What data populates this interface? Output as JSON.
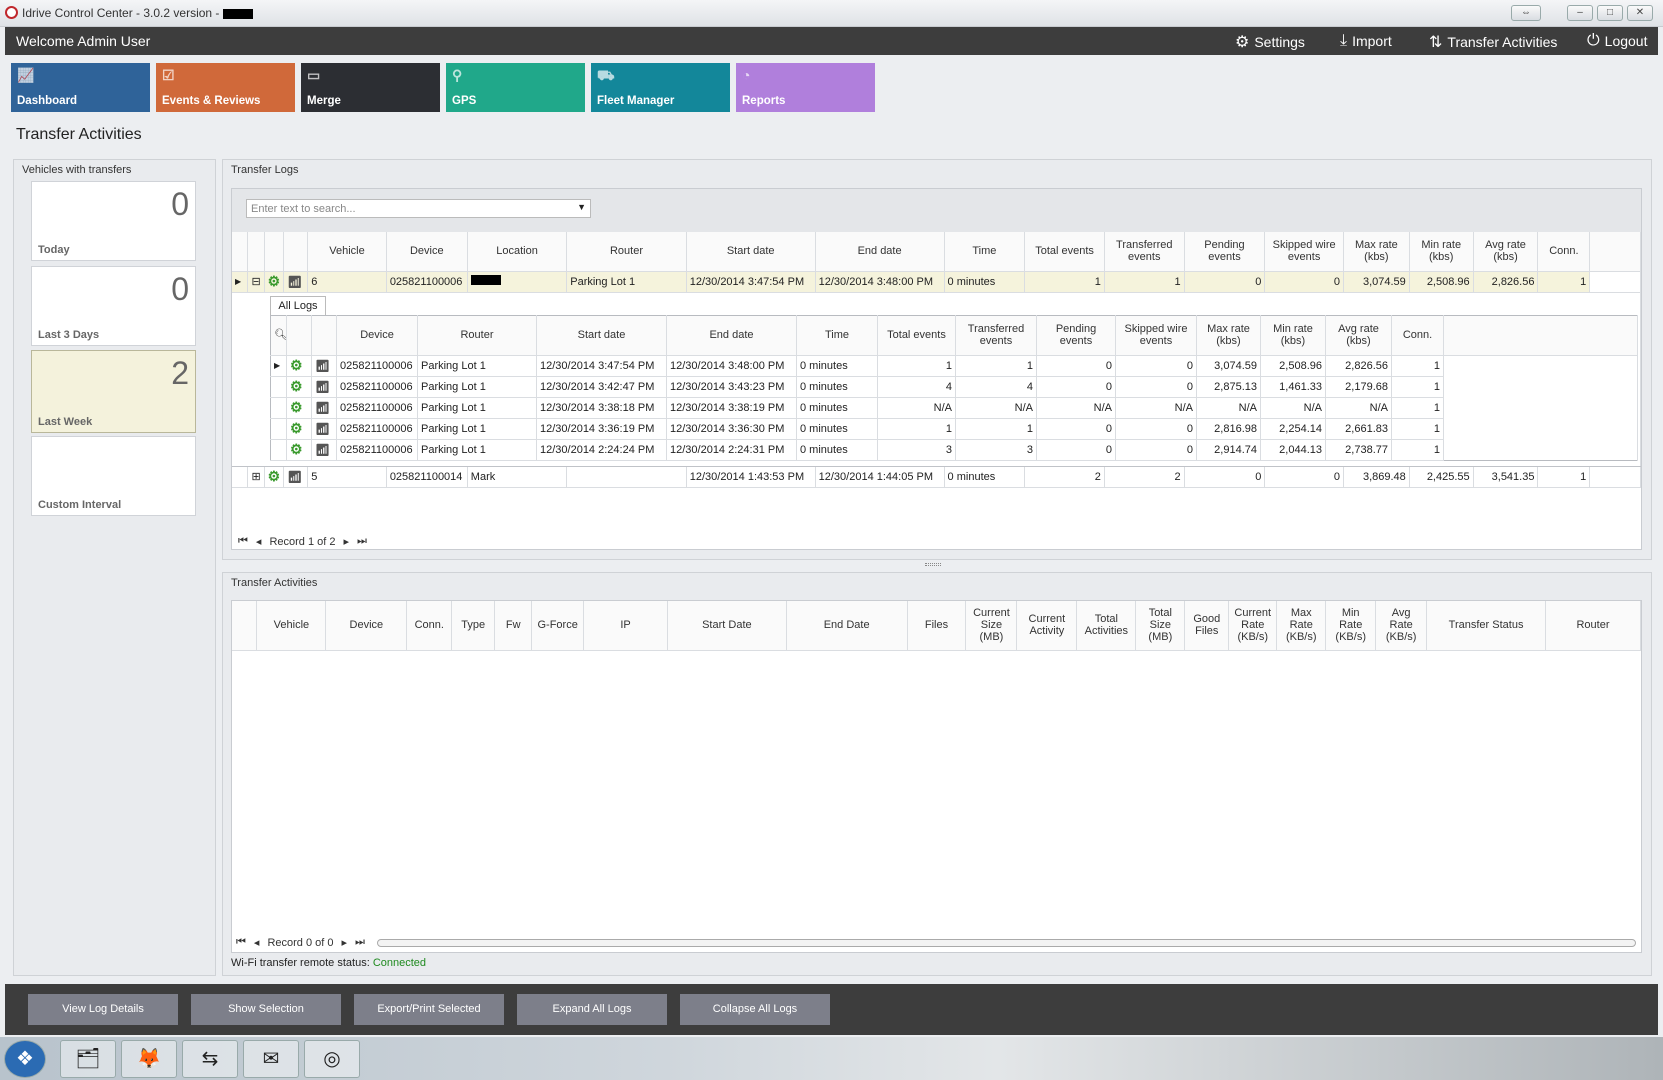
{
  "window": {
    "title": "Idrive Control Center - 3.0.2 version -"
  },
  "header": {
    "welcome": "Welcome Admin User",
    "nav": [
      {
        "label": "Settings",
        "icon": "gears-icon"
      },
      {
        "label": "Import",
        "icon": "download-icon"
      },
      {
        "label": "Transfer Activities",
        "icon": "transfer-arrows-icon"
      },
      {
        "label": "Logout",
        "icon": "power-icon"
      }
    ]
  },
  "tiles": [
    {
      "label": "Dashboard",
      "color": "#2f6399",
      "icon": "chart-icon"
    },
    {
      "label": "Events & Reviews",
      "color": "#d0693a",
      "icon": "clipboard-icon"
    },
    {
      "label": "Merge",
      "color": "#2c2e33",
      "icon": "merge-icon"
    },
    {
      "label": "GPS",
      "color": "#20a88a",
      "icon": "map-pin-icon"
    },
    {
      "label": "Fleet Manager",
      "color": "#13879a",
      "icon": "vehicles-icon"
    },
    {
      "label": "Reports",
      "color": "#b07fdc",
      "icon": "pie-chart-icon"
    }
  ],
  "page_title": "Transfer Activities",
  "vehicles_panel": {
    "title": "Vehicles with transfers",
    "cards": [
      {
        "count": "0",
        "label": "Today"
      },
      {
        "count": "0",
        "label": "Last 3 Days"
      },
      {
        "count": "2",
        "label": "Last Week",
        "selected": true
      },
      {
        "count": "",
        "label": "Custom Interval"
      }
    ]
  },
  "logs": {
    "title": "Transfer Logs",
    "search_placeholder": "Enter text to search...",
    "columns": [
      "Vehicle",
      "Device",
      "Location",
      "Router",
      "Start date",
      "End date",
      "Time",
      "Total events",
      "Transferred events",
      "Pending events",
      "Skipped wire events",
      "Max rate (kbs)",
      "Min rate (kbs)",
      "Avg rate (kbs)",
      "Conn."
    ],
    "rows": [
      {
        "expanded": true,
        "cells": [
          "6",
          "025821100006",
          "",
          "Parking Lot 1",
          "12/30/2014 3:47:54 PM",
          "12/30/2014 3:48:00 PM",
          "0 minutes",
          "1",
          "1",
          "0",
          "0",
          "3,074.59",
          "2,508.96",
          "2,826.56",
          "1"
        ]
      },
      {
        "expanded": false,
        "cells": [
          "5",
          "025821100014",
          "Mark",
          "",
          "12/30/2014 1:43:53 PM",
          "12/30/2014 1:44:05 PM",
          "0 minutes",
          "2",
          "2",
          "0",
          "0",
          "3,869.48",
          "2,425.55",
          "3,541.35",
          "1"
        ]
      }
    ],
    "detail_tab": "All Logs",
    "detail_columns": [
      "Device",
      "Router",
      "Start date",
      "End date",
      "Time",
      "Total events",
      "Transferred events",
      "Pending events",
      "Skipped wire events",
      "Max rate (kbs)",
      "Min rate (kbs)",
      "Avg rate (kbs)",
      "Conn."
    ],
    "detail_rows": [
      [
        "025821100006",
        "Parking Lot 1",
        "12/30/2014 3:47:54 PM",
        "12/30/2014 3:48:00 PM",
        "0 minutes",
        "1",
        "1",
        "0",
        "0",
        "3,074.59",
        "2,508.96",
        "2,826.56",
        "1"
      ],
      [
        "025821100006",
        "Parking Lot 1",
        "12/30/2014 3:42:47 PM",
        "12/30/2014 3:43:23 PM",
        "0 minutes",
        "4",
        "4",
        "0",
        "0",
        "2,875.13",
        "1,461.33",
        "2,179.68",
        "1"
      ],
      [
        "025821100006",
        "Parking Lot 1",
        "12/30/2014 3:38:18 PM",
        "12/30/2014 3:38:19 PM",
        "0 minutes",
        "N/A",
        "N/A",
        "N/A",
        "N/A",
        "N/A",
        "N/A",
        "N/A",
        "1"
      ],
      [
        "025821100006",
        "Parking Lot 1",
        "12/30/2014 3:36:19 PM",
        "12/30/2014 3:36:30 PM",
        "0 minutes",
        "1",
        "1",
        "0",
        "0",
        "2,816.98",
        "2,254.14",
        "2,661.83",
        "1"
      ],
      [
        "025821100006",
        "Parking Lot 1",
        "12/30/2014 2:24:24 PM",
        "12/30/2014 2:24:31 PM",
        "0 minutes",
        "3",
        "3",
        "0",
        "0",
        "2,914.74",
        "2,044.13",
        "2,738.77",
        "1"
      ]
    ],
    "pager": "Record 1 of 2"
  },
  "activities": {
    "title": "Transfer Activities",
    "columns": [
      "Vehicle",
      "Device",
      "Conn.",
      "Type",
      "Fw",
      "G-Force",
      "IP",
      "Start Date",
      "End Date",
      "Files",
      "Current Size (MB)",
      "Current Activity",
      "Total Activities",
      "Total Size (MB)",
      "Good Files",
      "Current Rate (KB/s)",
      "Max Rate (KB/s)",
      "Min Rate (KB/s)",
      "Avg Rate (KB/s)",
      "Transfer Status",
      "Router"
    ],
    "pager": "Record 0 of 0"
  },
  "status": {
    "label": "Wi-Fi transfer remote status:",
    "value": "Connected",
    "value_color": "#1f8a1f"
  },
  "buttons": [
    "View Log Details",
    "Show Selection",
    "Export/Print Selected",
    "Expand All Logs",
    "Collapse All Logs"
  ],
  "taskbar": [
    {
      "icon": "windows-start-icon"
    },
    {
      "icon": "file-explorer-icon"
    },
    {
      "icon": "firefox-icon"
    },
    {
      "icon": "teamviewer-icon"
    },
    {
      "icon": "outlook-icon"
    },
    {
      "icon": "idrive-app-icon"
    }
  ]
}
